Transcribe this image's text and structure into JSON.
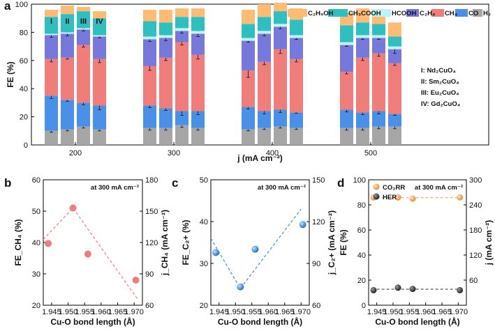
{
  "panel_labels": [
    "a",
    "b",
    "c",
    "d"
  ],
  "chart_data": [
    {
      "type": "bar",
      "stacked": true,
      "panel": "a",
      "xlabel": "j (mA cm⁻²)",
      "ylabel": "FE (%)",
      "ylim": [
        0,
        100
      ],
      "yticks": [
        0,
        20,
        40,
        60,
        80,
        100
      ],
      "groups": [
        "200",
        "300",
        "400",
        "500"
      ],
      "bar_labels": [
        "I",
        "II",
        "III",
        "IV"
      ],
      "catalysts": [
        "I: Nd₂CuO₄",
        "II: Sm₂CuO₄",
        "III: Eu₂CuO₄",
        "IV: Gd₂CuO₄"
      ],
      "legend_position": "top-right",
      "series": [
        {
          "name": "H₂",
          "color": "#a6a6a6",
          "values": [
            [
              10,
              11,
              13,
              11
            ],
            [
              12,
              12,
              14,
              12
            ],
            [
              11,
              12,
              13,
              12
            ],
            [
              12,
              12,
              13,
              13
            ]
          ],
          "errors": [
            [
              1,
              1,
              1,
              1
            ],
            [
              1.5,
              1.5,
              1.5,
              1.5
            ],
            [
              1,
              1,
              1,
              1
            ],
            [
              1.5,
              1.5,
              1.5,
              1.5
            ]
          ]
        },
        {
          "name": "CO",
          "color": "#4a90e8",
          "values": [
            [
              25,
              21,
              17,
              17
            ],
            [
              16,
              14,
              10,
              12
            ],
            [
              16,
              12,
              12,
              11
            ],
            [
              13,
              11,
              11,
              9
            ]
          ],
          "errors": [
            [
              2,
              1,
              1.5,
              3
            ],
            [
              1.5,
              1.5,
              3,
              2.5
            ],
            [
              1.5,
              2,
              2,
              0.5
            ],
            [
              1.5,
              1.5,
              2,
              1
            ]
          ]
        },
        {
          "name": "CH₄",
          "color": "#f07d79",
          "values": [
            [
              26,
              30,
              41,
              33
            ],
            [
              28,
              36,
              49,
              40
            ],
            [
              26,
              35,
              43,
              38
            ],
            [
              27,
              39,
              41,
              36
            ]
          ],
          "errors": [
            [
              2,
              1,
              1.5,
              2.5
            ],
            [
              3,
              2,
              2,
              3
            ],
            [
              5,
              2,
              3,
              2
            ],
            [
              1.5,
              2,
              2,
              1.5
            ]
          ]
        },
        {
          "name": "C₂H₄",
          "color": "#7678dc",
          "values": [
            [
              17,
              17,
              11,
              16
            ],
            [
              19,
              14,
              8,
              15
            ],
            [
              21,
              20,
              16,
              15
            ],
            [
              19,
              14,
              11,
              10
            ]
          ],
          "errors": [
            [
              1.5,
              1.5,
              1,
              1
            ],
            [
              1.5,
              2,
              1.5,
              2
            ],
            [
              1,
              1.5,
              1.5,
              1
            ],
            [
              1,
              1,
              1,
              3
            ]
          ]
        },
        {
          "name": "HCOOH",
          "color": "#bff4f6",
          "values": [
            [
              1,
              1,
              1,
              1
            ],
            [
              2,
              2,
              2,
              2
            ],
            [
              2,
              2,
              2,
              2
            ],
            [
              2,
              2,
              2,
              2
            ]
          ]
        },
        {
          "name": "CH₃COOH",
          "color": "#2fbfbf",
          "values": [
            [
              12,
              13,
              12,
              12
            ],
            [
              11,
              9,
              8,
              10
            ],
            [
              10,
              10,
              9,
              11
            ],
            [
              12,
              9,
              8,
              7
            ]
          ]
        },
        {
          "name": "C₂H₅OH",
          "color": "#fdbb74",
          "values": [
            [
              5,
              6,
              3,
              5
            ],
            [
              8,
              9,
              6,
              6
            ],
            [
              10,
              9,
              6,
              8
            ],
            [
              9,
              10,
              6,
              10
            ]
          ]
        }
      ]
    },
    {
      "type": "scatter",
      "panel": "b",
      "xlabel": "Cu-O bond length (Å)",
      "ylabel_left": "FE_CH₄ (%)",
      "ylabel_right": "j_CH₄ (mA cm⁻²)",
      "annotation": "at 300 mA cm⁻²",
      "xlim": [
        1.9425,
        1.9725
      ],
      "xticks": [
        "1.945",
        "1.950",
        "1.955",
        "1.960",
        "1.965",
        "1.970"
      ],
      "ylim_left": [
        20,
        60
      ],
      "yticks_left": [
        20,
        30,
        40,
        50,
        60
      ],
      "ylim_right": [
        60,
        180
      ],
      "yticks_right": [
        60,
        90,
        120,
        150,
        180
      ],
      "color": "#f07d79",
      "x": [
        1.944,
        1.9515,
        1.956,
        1.9705
      ],
      "y": [
        39.7,
        51,
        36.3,
        28
      ],
      "trend": [
        [
          1.9425,
          41
        ],
        [
          1.9515,
          51
        ],
        [
          1.971,
          22
        ]
      ]
    },
    {
      "type": "scatter",
      "panel": "c",
      "xlabel": "Cu-O bond length (Å)",
      "ylabel_left": "FE_C₂+ (%)",
      "ylabel_right": "j_C₂+ (mA cm⁻²)",
      "annotation": "at 300 mA cm⁻²",
      "xlim": [
        1.9425,
        1.9725
      ],
      "xticks": [
        "1.945",
        "1.950",
        "1.955",
        "1.960",
        "1.965",
        "1.970"
      ],
      "ylim_left": [
        20,
        50
      ],
      "yticks_left": [
        20,
        30,
        40,
        50
      ],
      "ylim_right": [
        60,
        150
      ],
      "yticks_right": [
        60,
        90,
        120,
        150
      ],
      "color": "#3b8fe0",
      "x": [
        1.944,
        1.9515,
        1.956,
        1.9705
      ],
      "y": [
        32.6,
        24.4,
        33.4,
        39.3
      ],
      "trend": [
        [
          1.9425,
          36
        ],
        [
          1.9515,
          24
        ],
        [
          1.97,
          43
        ]
      ]
    },
    {
      "type": "scatter",
      "panel": "d",
      "xlabel": "Cu-O bond length (Å)",
      "ylabel_left": "FE (%)",
      "ylabel_right": "j (mA cm⁻²)",
      "annotation": "at 300 mA cm⁻²",
      "legend_position": "top-left",
      "xlim": [
        1.9425,
        1.9725
      ],
      "xticks": [
        "1.945",
        "1.950",
        "1.955",
        "1.960",
        "1.965",
        "1.970"
      ],
      "ylim_left": [
        0,
        100
      ],
      "yticks_left": [
        0,
        20,
        40,
        60,
        80,
        100
      ],
      "ylim_right": [
        0,
        300
      ],
      "yticks_right": [
        60,
        120,
        180,
        240,
        300
      ],
      "series": [
        {
          "name": "CO₂RR",
          "color": "#f5a45c",
          "x": [
            1.944,
            1.9515,
            1.956,
            1.9705
          ],
          "y": [
            86,
            86,
            85,
            86
          ]
        },
        {
          "name": "HER",
          "color": "#444444",
          "x": [
            1.944,
            1.9515,
            1.956,
            1.9705
          ],
          "y": [
            12,
            14,
            13,
            12
          ]
        }
      ]
    }
  ]
}
